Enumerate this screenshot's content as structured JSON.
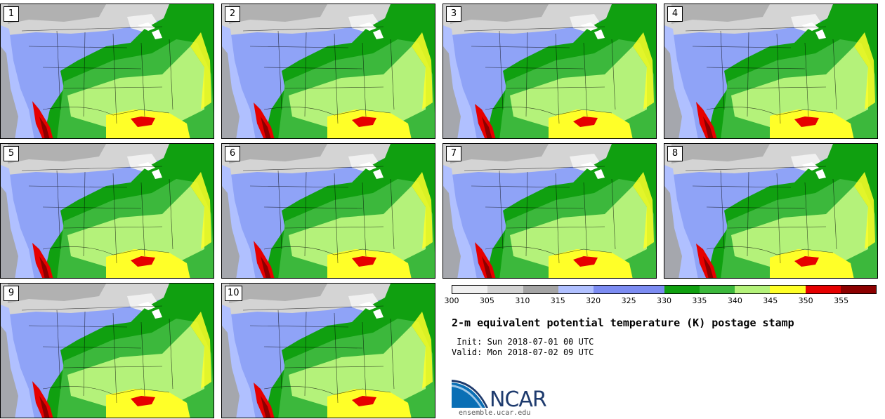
{
  "panels": [
    {
      "label": "1"
    },
    {
      "label": "2"
    },
    {
      "label": "3"
    },
    {
      "label": "4"
    },
    {
      "label": "5"
    },
    {
      "label": "6"
    },
    {
      "label": "7"
    },
    {
      "label": "8"
    },
    {
      "label": "9"
    },
    {
      "label": "10"
    }
  ],
  "colorbar": {
    "colors": [
      "#f0f0f0",
      "#d2d2d2",
      "#a4a4a4",
      "#b0c0ff",
      "#7c8cf2",
      "#7c8cf2",
      "#10a010",
      "#3cb83c",
      "#b4f27a",
      "#ffff28",
      "#e60000",
      "#8c0000"
    ],
    "ticks": [
      "300",
      "305",
      "310",
      "315",
      "320",
      "325",
      "330",
      "335",
      "340",
      "345",
      "350",
      "355"
    ],
    "min": 300,
    "max": 360,
    "step": 5
  },
  "title": "2-m equivalent potential temperature (K) postage stamp",
  "init_line": " Init: Sun 2018-07-01 00 UTC",
  "valid_line": "Valid: Mon 2018-07-02 09 UTC",
  "logo": {
    "text": "NCAR",
    "website": "ensemble.ucar.edu"
  }
}
